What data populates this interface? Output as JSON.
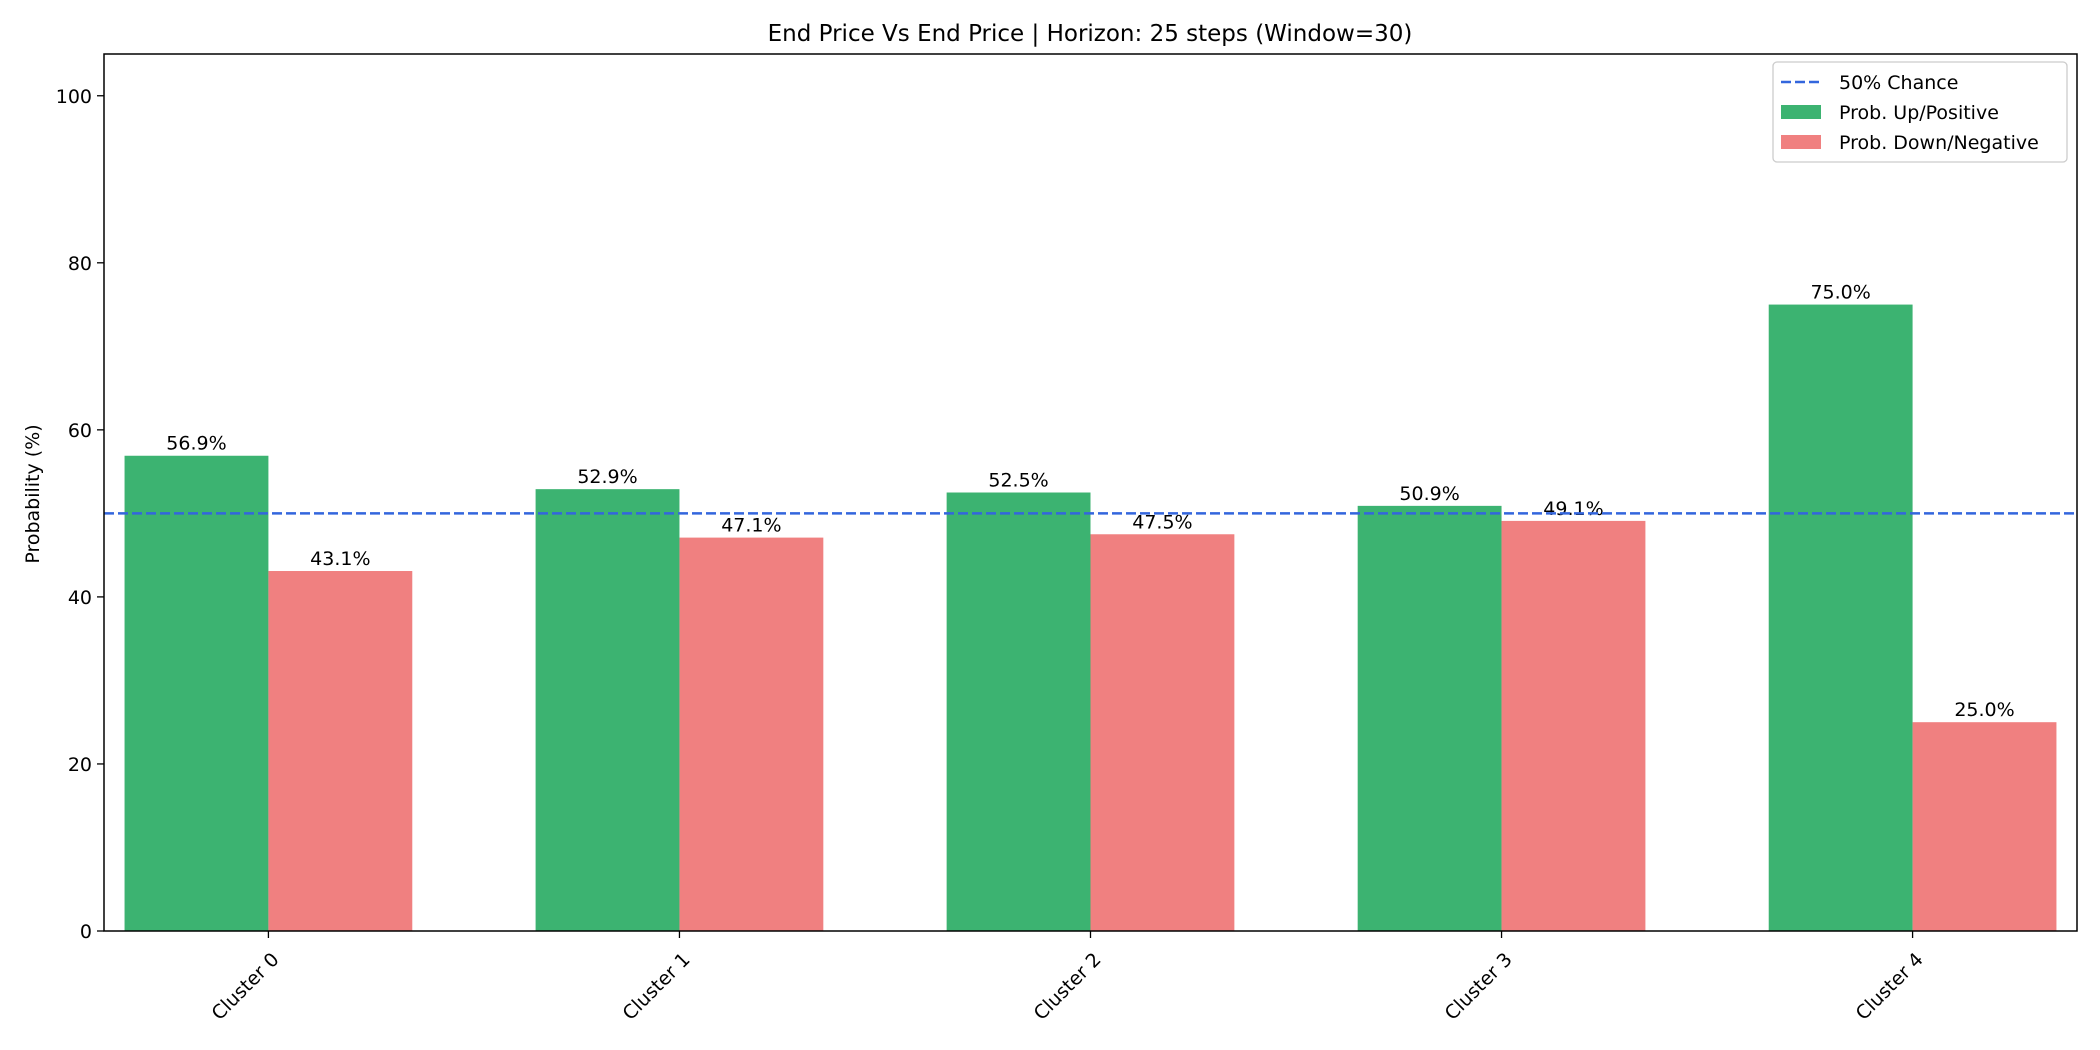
{
  "chart_data": {
    "type": "bar",
    "title": "End Price Vs End Price | Horizon: 25 steps (Window=30)",
    "xlabel": "",
    "ylabel": "Probability (%)",
    "ylim": [
      0,
      105
    ],
    "yticks": [
      0,
      20,
      40,
      60,
      80,
      100
    ],
    "categories": [
      "Cluster 0",
      "Cluster 1",
      "Cluster 2",
      "Cluster 3",
      "Cluster 4"
    ],
    "series": [
      {
        "name": "Prob. Up/Positive",
        "color": "#3cb371",
        "values": [
          56.9,
          52.9,
          52.5,
          50.9,
          75.0
        ],
        "labels": [
          "56.9%",
          "52.9%",
          "52.5%",
          "50.9%",
          "75.0%"
        ]
      },
      {
        "name": "Prob. Down/Negative",
        "color": "#f08080",
        "values": [
          43.1,
          47.1,
          47.5,
          49.1,
          25.0
        ],
        "labels": [
          "43.1%",
          "47.1%",
          "47.5%",
          "49.1%",
          "25.0%"
        ]
      }
    ],
    "reference_line": {
      "name": "50% Chance",
      "value": 50,
      "color": "#3366dd",
      "style": "dashed"
    },
    "legend_position": "top-right",
    "grid": false
  }
}
